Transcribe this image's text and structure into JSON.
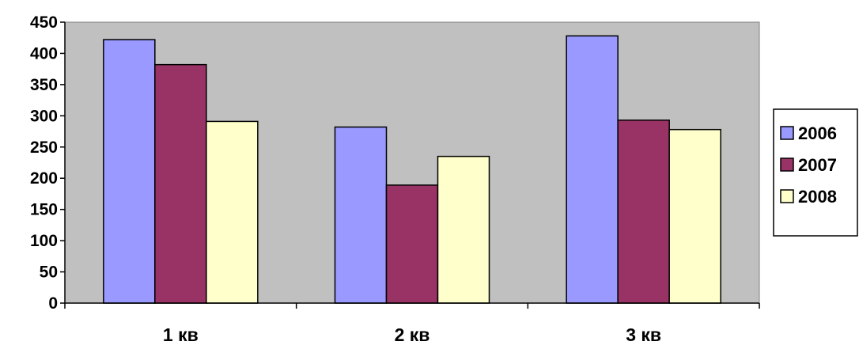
{
  "chart_data": {
    "type": "bar",
    "categories": [
      "1 кв",
      "2 кв",
      "3 кв"
    ],
    "series": [
      {
        "name": "2006",
        "values": [
          422,
          282,
          428
        ],
        "color": "#9999ff"
      },
      {
        "name": "2007",
        "values": [
          382,
          189,
          293
        ],
        "color": "#993366"
      },
      {
        "name": "2008",
        "values": [
          291,
          235,
          278
        ],
        "color": "#ffffcc"
      }
    ],
    "ylim": [
      0,
      450
    ],
    "yticks": [
      0,
      50,
      100,
      150,
      200,
      250,
      300,
      350,
      400,
      450
    ],
    "grid": false,
    "plot_background": "#c0c0c0",
    "legend_position": "right"
  }
}
